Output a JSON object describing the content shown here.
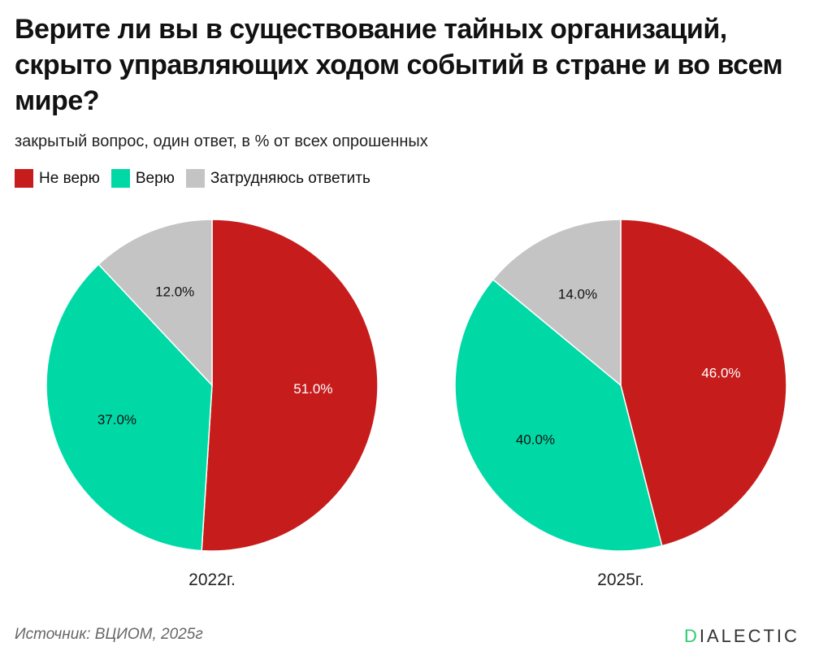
{
  "title": "Верите ли вы в существование тайных организаций, скрыто управляющих ходом событий в стране и во всем мире?",
  "subtitle": "закрытый вопрос, один ответ, в % от всех опрошенных",
  "source": "Источник: ВЦИОМ, 2025г",
  "logo": {
    "first": "D",
    "rest": "IALECTIC"
  },
  "chart_data": [
    {
      "type": "pie",
      "title": "2022г.",
      "categories": [
        "Не верю",
        "Верю",
        "Затрудняюсь ответить"
      ],
      "values": [
        51.0,
        37.0,
        12.0
      ],
      "labels": [
        "51.0%",
        "37.0%",
        "12.0%"
      ],
      "colors": [
        "#c61c1c",
        "#00d9a6",
        "#c4c4c4"
      ],
      "legend": "top-left"
    },
    {
      "type": "pie",
      "title": "2025г.",
      "categories": [
        "Не верю",
        "Верю",
        "Затрудняюсь ответить"
      ],
      "values": [
        46.0,
        40.0,
        14.0
      ],
      "labels": [
        "46.0%",
        "40.0%",
        "14.0%"
      ],
      "colors": [
        "#c61c1c",
        "#00d9a6",
        "#c4c4c4"
      ],
      "legend": "top-left"
    }
  ],
  "legend": [
    {
      "label": "Не верю",
      "color": "#c61c1c"
    },
    {
      "label": "Верю",
      "color": "#00d9a6"
    },
    {
      "label": "Затрудняюсь ответить",
      "color": "#c4c4c4"
    }
  ]
}
